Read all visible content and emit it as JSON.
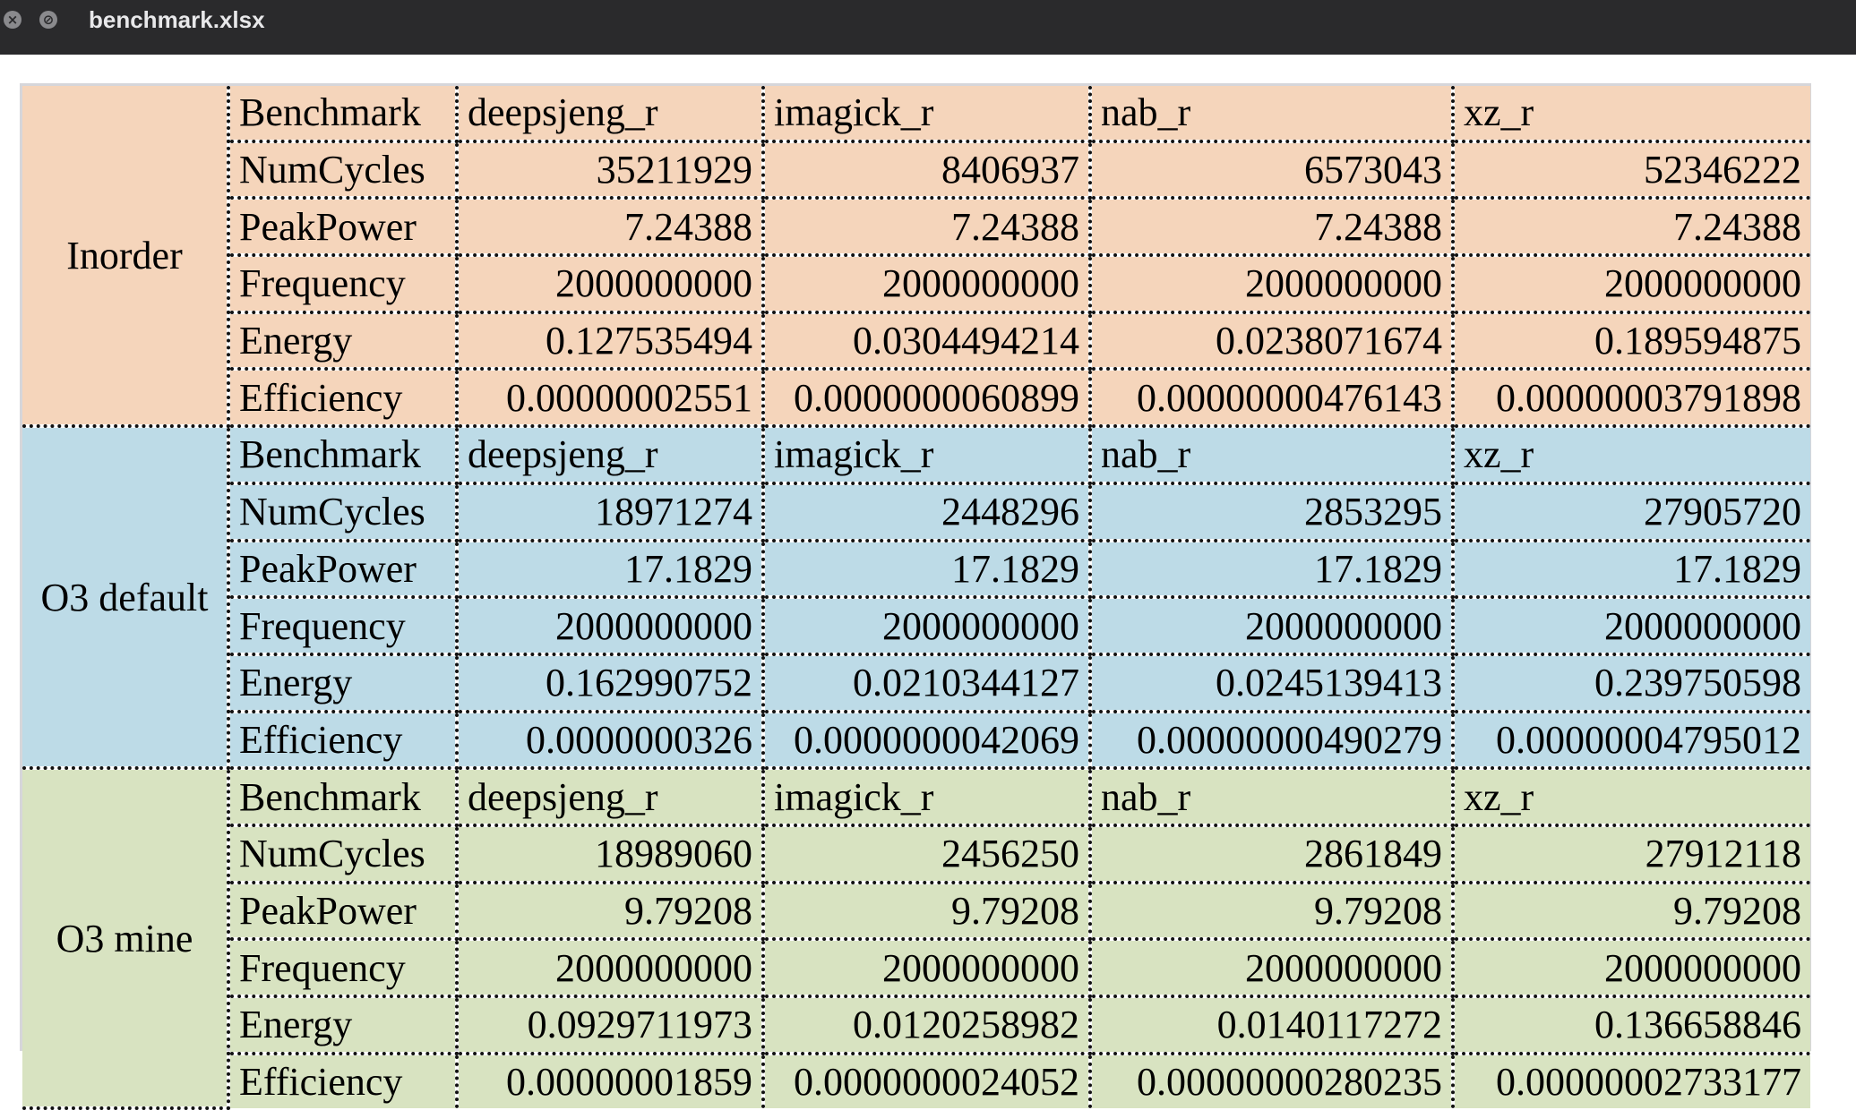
{
  "window": {
    "title": "benchmark.xlsx",
    "close_icon": "close-icon",
    "secondary_icon": "slash-circle-icon"
  },
  "colors": {
    "inorder_bg": "#f5d5bb",
    "o3_default_bg": "#bddbe7",
    "o3_mine_bg": "#d8e3c1"
  },
  "groups": [
    {
      "name": "Inorder",
      "rows": [
        {
          "label": "Benchmark",
          "values": [
            "deepsjeng_r",
            "imagick_r",
            "nab_r",
            "xz_r"
          ]
        },
        {
          "label": "NumCycles",
          "values": [
            "35211929",
            "8406937",
            "6573043",
            "52346222"
          ]
        },
        {
          "label": "PeakPower",
          "values": [
            "7.24388",
            "7.24388",
            "7.24388",
            "7.24388"
          ]
        },
        {
          "label": "Frequency",
          "values": [
            "2000000000",
            "2000000000",
            "2000000000",
            "2000000000"
          ]
        },
        {
          "label": "Energy",
          "values": [
            "0.127535494",
            "0.0304494214",
            "0.0238071674",
            "0.189594875"
          ]
        },
        {
          "label": "Efficiency",
          "values": [
            "0.00000002551",
            "0.0000000060899",
            "0.00000000476143",
            "0.00000003791898"
          ]
        }
      ]
    },
    {
      "name": "O3 default",
      "rows": [
        {
          "label": "Benchmark",
          "values": [
            "deepsjeng_r",
            "imagick_r",
            "nab_r",
            "xz_r"
          ]
        },
        {
          "label": "NumCycles",
          "values": [
            "18971274",
            "2448296",
            "2853295",
            "27905720"
          ]
        },
        {
          "label": "PeakPower",
          "values": [
            "17.1829",
            "17.1829",
            "17.1829",
            "17.1829"
          ]
        },
        {
          "label": "Frequency",
          "values": [
            "2000000000",
            "2000000000",
            "2000000000",
            "2000000000"
          ]
        },
        {
          "label": "Energy",
          "values": [
            "0.162990752",
            "0.0210344127",
            "0.0245139413",
            "0.239750598"
          ]
        },
        {
          "label": "Efficiency",
          "values": [
            "0.0000000326",
            "0.0000000042069",
            "0.00000000490279",
            "0.00000004795012"
          ]
        }
      ]
    },
    {
      "name": "O3 mine",
      "rows": [
        {
          "label": "Benchmark",
          "values": [
            "deepsjeng_r",
            "imagick_r",
            "nab_r",
            "xz_r"
          ]
        },
        {
          "label": "NumCycles",
          "values": [
            "18989060",
            "2456250",
            "2861849",
            "27912118"
          ]
        },
        {
          "label": "PeakPower",
          "values": [
            "9.79208",
            "9.79208",
            "9.79208",
            "9.79208"
          ]
        },
        {
          "label": "Frequency",
          "values": [
            "2000000000",
            "2000000000",
            "2000000000",
            "2000000000"
          ]
        },
        {
          "label": "Energy",
          "values": [
            "0.0929711973",
            "0.0120258982",
            "0.0140117272",
            "0.136658846"
          ]
        },
        {
          "label": "Efficiency",
          "values": [
            "0.00000001859",
            "0.0000000024052",
            "0.00000000280235",
            "0.00000002733177"
          ]
        }
      ]
    }
  ]
}
